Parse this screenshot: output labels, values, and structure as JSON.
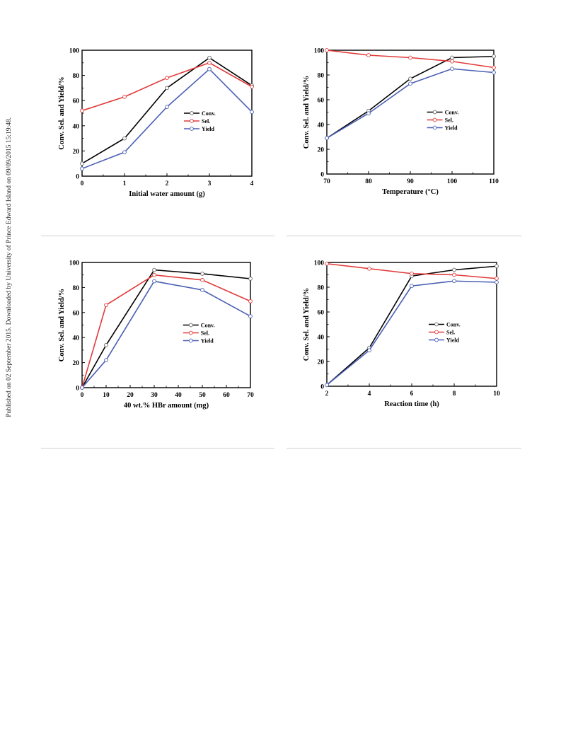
{
  "side_note": "Published on 02 September 2015. Downloaded by University of Prince Edward Island on 09/09/2015 15:19:48.",
  "colors": {
    "conv": "#000000",
    "sel": "#e23a3a",
    "yield": "#4a5fb5"
  },
  "chart_data": [
    {
      "type": "line",
      "title": "",
      "xlabel": "Initial water amount (g)",
      "ylabel": "Conv. Sel. and Yield/%",
      "x": [
        0,
        1,
        2,
        3,
        4
      ],
      "xticks": [
        0,
        1,
        2,
        3,
        4
      ],
      "xlim": [
        0,
        4
      ],
      "ylim": [
        0,
        100
      ],
      "yticks": [
        0,
        20,
        40,
        60,
        80,
        100
      ],
      "legend": "right-middle",
      "series": [
        {
          "name": "Conv.",
          "key": "conv",
          "values": [
            10,
            30,
            70,
            94,
            72
          ]
        },
        {
          "name": "Sel.",
          "key": "sel",
          "values": [
            52,
            63,
            78,
            90,
            71
          ]
        },
        {
          "name": "Yield",
          "key": "yield",
          "values": [
            6,
            19,
            55,
            85,
            51
          ]
        }
      ]
    },
    {
      "type": "line",
      "title": "",
      "xlabel": "Temperature (°C)",
      "ylabel": "Conv. Sel. and Yield/%",
      "x": [
        70,
        80,
        90,
        100,
        110
      ],
      "xticks": [
        70,
        80,
        90,
        100,
        110
      ],
      "xlim": [
        70,
        110
      ],
      "ylim": [
        0,
        100
      ],
      "yticks": [
        0,
        20,
        40,
        60,
        80,
        100
      ],
      "legend": "right-middle",
      "series": [
        {
          "name": "Conv.",
          "key": "conv",
          "values": [
            29,
            51,
            77,
            94,
            95
          ]
        },
        {
          "name": "Sel.",
          "key": "sel",
          "values": [
            100,
            96,
            94,
            91,
            86
          ]
        },
        {
          "name": "Yield",
          "key": "yield",
          "values": [
            29,
            49,
            73,
            85,
            82
          ]
        }
      ]
    },
    {
      "type": "line",
      "title": "",
      "xlabel": "40 wt.% HBr amount (mg)",
      "ylabel": "Conv. Sel. and Yield/%",
      "x": [
        0,
        10,
        30,
        50,
        70
      ],
      "xticks": [
        0,
        10,
        20,
        30,
        40,
        50,
        60,
        70
      ],
      "xlim": [
        0,
        70
      ],
      "ylim": [
        0,
        100
      ],
      "yticks": [
        0,
        20,
        40,
        60,
        80,
        100
      ],
      "legend": "right-middle",
      "series": [
        {
          "name": "Conv.",
          "key": "conv",
          "values": [
            0,
            34,
            94,
            91,
            87
          ]
        },
        {
          "name": "Sel.",
          "key": "sel",
          "values": [
            0,
            66,
            90,
            86,
            69
          ]
        },
        {
          "name": "Yield",
          "key": "yield",
          "values": [
            0,
            22,
            85,
            78,
            57
          ]
        }
      ]
    },
    {
      "type": "line",
      "title": "",
      "xlabel": "Reaction time (h)",
      "ylabel": "Conv. Sel. and Yield/%",
      "x": [
        2,
        4,
        6,
        8,
        10
      ],
      "xticks": [
        2,
        4,
        6,
        8,
        10
      ],
      "xlim": [
        2,
        10
      ],
      "ylim": [
        0,
        100
      ],
      "yticks": [
        0,
        20,
        40,
        60,
        80,
        100
      ],
      "legend": "right-middle",
      "series": [
        {
          "name": "Conv.",
          "key": "conv",
          "values": [
            1,
            31,
            89,
            94,
            97
          ]
        },
        {
          "name": "Sel.",
          "key": "sel",
          "values": [
            99,
            95,
            91,
            90,
            87
          ]
        },
        {
          "name": "Yield",
          "key": "yield",
          "values": [
            1,
            29,
            81,
            85,
            84
          ]
        }
      ]
    }
  ]
}
